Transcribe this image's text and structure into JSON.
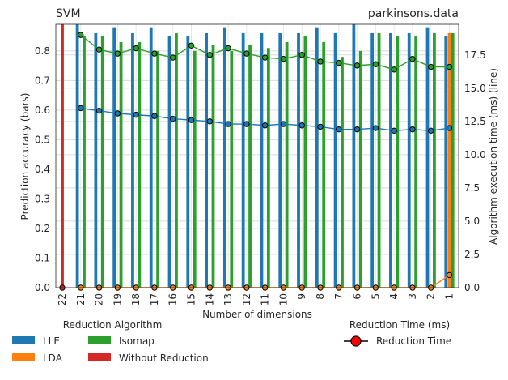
{
  "chart_data": {
    "type": "bar",
    "title_left": "SVM",
    "title_right": "parkinsons.data",
    "xlabel": "Number of dimensions",
    "ylabel_left": "Prediction accuracy (bars)",
    "ylabel_right": "Algorithm execution time (ms) (line)",
    "categories": [
      "22",
      "21",
      "20",
      "19",
      "18",
      "17",
      "16",
      "15",
      "14",
      "13",
      "12",
      "11",
      "10",
      "9",
      "8",
      "7",
      "6",
      "5",
      "4",
      "3",
      "2",
      "1"
    ],
    "ylim_left": [
      0,
      0.89
    ],
    "ylim_right": [
      0,
      19.8
    ],
    "yticks_left": [
      0.0,
      0.1,
      0.2,
      0.3,
      0.4,
      0.5,
      0.6,
      0.7,
      0.8
    ],
    "yticks_right": [
      0.0,
      2.5,
      5.0,
      7.5,
      10.0,
      12.5,
      15.0,
      17.5
    ],
    "grid": true,
    "bar_series": [
      {
        "name": "LLE",
        "color": "#1f77b4",
        "values": [
          null,
          0.89,
          0.86,
          0.88,
          0.86,
          0.88,
          0.85,
          0.85,
          0.86,
          0.88,
          0.86,
          0.86,
          0.86,
          0.86,
          0.88,
          0.86,
          0.89,
          0.86,
          0.86,
          0.86,
          0.88,
          0.85
        ]
      },
      {
        "name": "LDA",
        "color": "#ff7f0e",
        "values": [
          null,
          null,
          null,
          null,
          null,
          null,
          null,
          null,
          null,
          null,
          null,
          null,
          null,
          null,
          null,
          null,
          null,
          null,
          null,
          null,
          null,
          0.86
        ]
      },
      {
        "name": "Isomap",
        "color": "#2ca02c",
        "values": [
          null,
          0.85,
          0.85,
          0.83,
          0.83,
          0.8,
          0.86,
          0.8,
          0.82,
          0.8,
          0.82,
          0.81,
          0.83,
          0.85,
          0.83,
          0.78,
          0.8,
          0.86,
          0.85,
          0.85,
          0.86,
          0.86
        ]
      },
      {
        "name": "Without Reduction",
        "color": "#d62728",
        "values": [
          0.89,
          null,
          null,
          null,
          null,
          null,
          null,
          null,
          null,
          null,
          null,
          null,
          null,
          null,
          null,
          null,
          null,
          null,
          null,
          null,
          null,
          null
        ]
      }
    ],
    "line_series": [
      {
        "name": "LLE time",
        "color": "#1f77b4",
        "values": [
          null,
          13.5,
          13.3,
          13.1,
          13.0,
          12.9,
          12.7,
          12.6,
          12.5,
          12.3,
          12.3,
          12.2,
          12.3,
          12.2,
          12.1,
          11.9,
          11.9,
          12.0,
          11.8,
          11.9,
          11.8,
          12.0
        ]
      },
      {
        "name": "Isomap time",
        "color": "#2ca02c",
        "values": [
          null,
          19.0,
          17.9,
          17.6,
          18.0,
          17.6,
          17.3,
          18.2,
          17.5,
          18.0,
          17.6,
          17.3,
          17.2,
          17.5,
          17.0,
          16.9,
          16.7,
          16.8,
          16.4,
          17.2,
          16.6,
          16.6
        ]
      },
      {
        "name": "LDA time",
        "color": "#ff7f0e",
        "values": [
          null,
          0,
          0,
          0,
          0,
          0,
          0,
          0,
          0,
          0,
          0,
          0,
          0,
          0,
          0,
          0,
          0,
          0,
          0,
          0,
          0,
          0.95
        ]
      },
      {
        "name": "Without Reduction time",
        "color": "#d62728",
        "values": [
          0,
          null,
          null,
          null,
          null,
          null,
          null,
          null,
          null,
          null,
          null,
          null,
          null,
          null,
          null,
          null,
          null,
          null,
          null,
          null,
          null,
          null
        ]
      }
    ],
    "legend_algo": {
      "title": "Reduction Algorithm",
      "entries": [
        {
          "label": "LLE",
          "color": "#1f77b4"
        },
        {
          "label": "LDA",
          "color": "#ff7f0e"
        },
        {
          "label": "Isomap",
          "color": "#2ca02c"
        },
        {
          "label": "Without Reduction",
          "color": "#d62728"
        }
      ]
    },
    "legend_time": {
      "title": "Reduction Time (ms)",
      "entries": [
        {
          "label": "Reduction Time",
          "color": "#ff0000"
        }
      ]
    }
  }
}
